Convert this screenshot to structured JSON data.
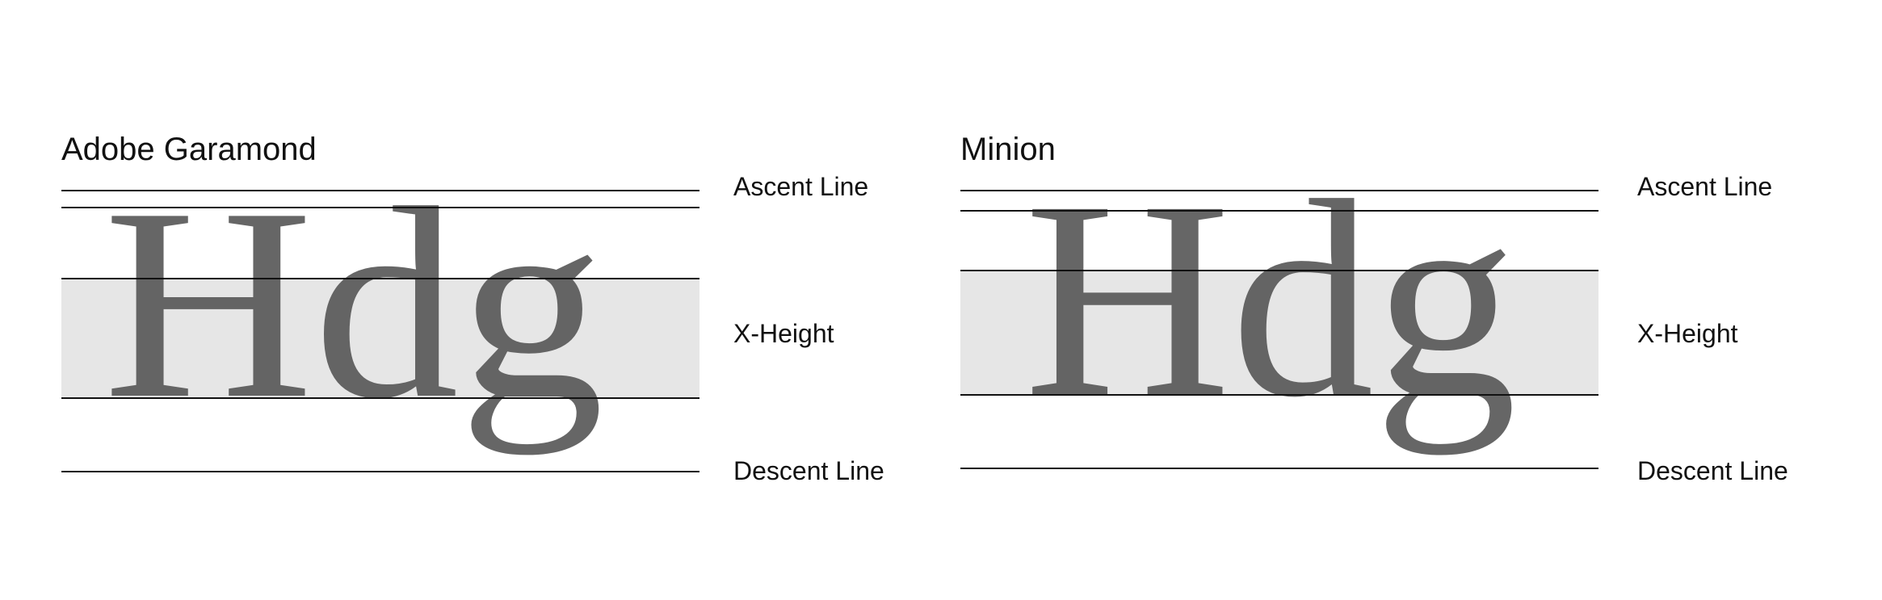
{
  "colors": {
    "band": "#e6e6e6",
    "glyph": "#555555",
    "rule": "#111111",
    "background": "#ffffff"
  },
  "panels": [
    {
      "font_name": "Adobe Garamond",
      "sample": "Hdg",
      "labels": {
        "ascent": "Ascent Line",
        "xheight": "X-Height",
        "descent": "Descent Line"
      }
    },
    {
      "font_name": "Minion",
      "sample": "Hdg",
      "labels": {
        "ascent": "Ascent Line",
        "xheight": "X-Height",
        "descent": "Descent Line"
      }
    }
  ]
}
